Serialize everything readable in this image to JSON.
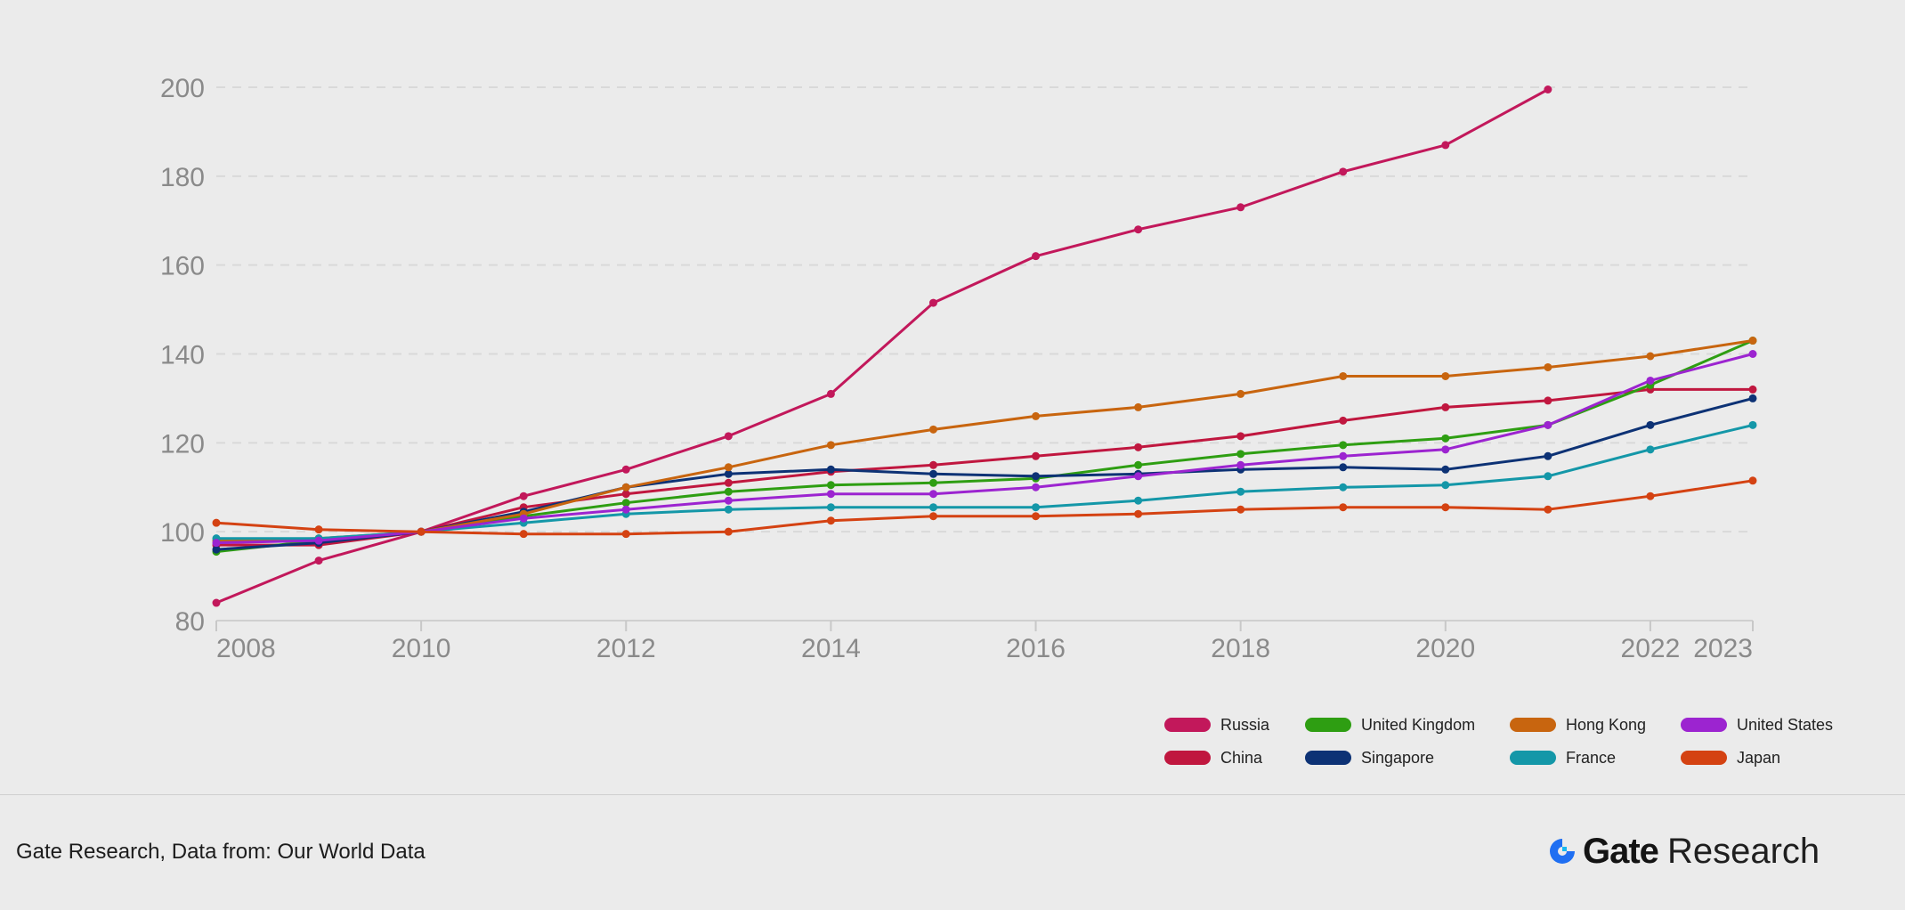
{
  "chart_data": {
    "type": "line",
    "title": "",
    "xlabel": "",
    "ylabel": "",
    "xlim": [
      2008,
      2023
    ],
    "ylim": [
      80,
      200
    ],
    "x_ticks": [
      2008,
      2010,
      2012,
      2014,
      2016,
      2018,
      2020,
      2022,
      2023
    ],
    "y_ticks": [
      80,
      100,
      120,
      140,
      160,
      180,
      200
    ],
    "grid": "horizontal dashed",
    "legend_position": "bottom-right",
    "x": [
      2008,
      2009,
      2010,
      2011,
      2012,
      2013,
      2014,
      2015,
      2016,
      2017,
      2018,
      2019,
      2020,
      2021,
      2022,
      2023
    ],
    "series": [
      {
        "name": "Russia",
        "color": "#c2185b",
        "values": [
          84,
          93.5,
          100,
          108,
          114,
          121.5,
          131,
          151.5,
          162,
          168,
          173,
          181,
          187,
          199.5,
          null,
          null
        ]
      },
      {
        "name": "China",
        "color": "#c0173f",
        "values": [
          97,
          97,
          100,
          105.5,
          108.5,
          111,
          113.5,
          115,
          117,
          119,
          121.5,
          125,
          128,
          129.5,
          132,
          132
        ]
      },
      {
        "name": "United Kingdom",
        "color": "#2e9e12",
        "values": [
          95.5,
          98,
          100,
          103.5,
          106.5,
          109,
          110.5,
          111,
          112,
          115,
          117.5,
          119.5,
          121,
          124,
          133,
          143
        ]
      },
      {
        "name": "Singapore",
        "color": "#0d3275",
        "values": [
          96,
          97.5,
          100,
          104.5,
          110,
          113,
          114,
          113,
          112.5,
          113,
          114,
          114.5,
          114,
          117,
          124,
          130
        ]
      },
      {
        "name": "Hong Kong",
        "color": "#c8650f",
        "values": [
          98,
          98.5,
          100,
          104,
          110,
          114.5,
          119.5,
          123,
          126,
          128,
          131,
          135,
          135,
          137,
          139.5,
          143
        ]
      },
      {
        "name": "France",
        "color": "#1497a8",
        "values": [
          98.5,
          98.5,
          100,
          102,
          104,
          105,
          105.5,
          105.5,
          105.5,
          107,
          109,
          110,
          110.5,
          112.5,
          118.5,
          124
        ]
      },
      {
        "name": "United States",
        "color": "#9c24d0",
        "values": [
          97.5,
          98,
          100,
          103,
          105,
          107,
          108.5,
          108.5,
          110,
          112.5,
          115,
          117,
          118.5,
          124,
          134,
          140
        ]
      },
      {
        "name": "Japan",
        "color": "#d44212",
        "values": [
          102,
          100.5,
          100,
          99.5,
          99.5,
          100,
          102.5,
          103.5,
          103.5,
          104,
          105,
          105.5,
          105.5,
          105,
          108,
          111.5
        ]
      }
    ]
  },
  "legend": {
    "columns": [
      [
        "Russia",
        "China"
      ],
      [
        "United Kingdom",
        "Singapore"
      ],
      [
        "Hong Kong",
        "France"
      ],
      [
        "United States",
        "Japan"
      ]
    ]
  },
  "footer": {
    "source": "Gate Research, Data from: Our World Data",
    "brand_name": "Gate",
    "brand_suffix": "Research",
    "brand_color": "#1f6ff2"
  }
}
